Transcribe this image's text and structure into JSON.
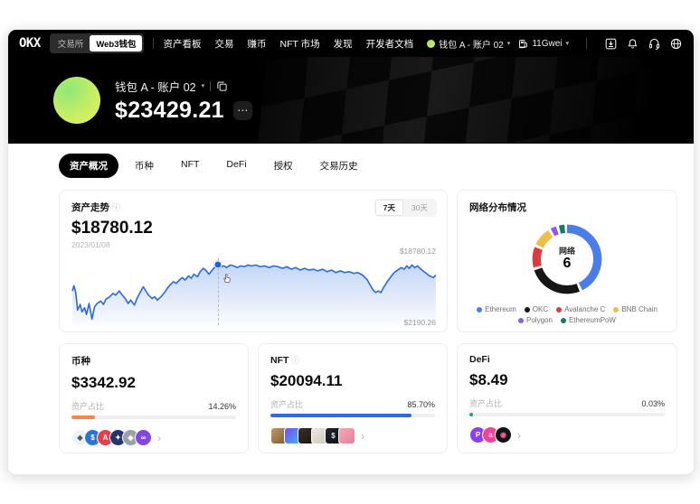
{
  "icons_text": {
    "caret_down": "▾",
    "chevron_right": "›",
    "more": "⋯",
    "info": "ⓘ"
  },
  "navbar": {
    "logo": "OKX",
    "toggle": [
      {
        "label": "交易所",
        "active": false
      },
      {
        "label": "Web3钱包",
        "active": true
      }
    ],
    "links": [
      "资产看板",
      "交易",
      "赚币",
      "NFT 市场",
      "发现",
      "开发者文档"
    ],
    "account_label": "钱包 A - 账户 02",
    "gas_label": "11Gwei"
  },
  "hero": {
    "wallet_name": "钱包 A - 账户 02",
    "balance": "$23429.21"
  },
  "tabs": [
    {
      "label": "资产概况",
      "active": true
    },
    {
      "label": "币种",
      "active": false
    },
    {
      "label": "NFT",
      "active": false
    },
    {
      "label": "DeFi",
      "active": false
    },
    {
      "label": "授权",
      "active": false
    },
    {
      "label": "交易历史",
      "active": false
    }
  ],
  "trend_card": {
    "title": "资产走势",
    "value": "$18780.12",
    "date": "2023/01/08",
    "ranges": [
      {
        "label": "7天",
        "active": true
      },
      {
        "label": "30天",
        "active": false
      }
    ],
    "max_label": "$18780.12",
    "min_label": "$2190.26",
    "line_color": "#2a6be2"
  },
  "network_card": {
    "title": "网络分布情况",
    "center_label": "网络",
    "center_value": "6"
  },
  "asset_cards": [
    {
      "title": "币种",
      "info_icon": false,
      "value": "$3342.92",
      "ratio_label": "资产占比",
      "percent": "14.26%",
      "bar_pct": 14.26,
      "bar_color": "#f2874a",
      "icon_shape": "circle",
      "icons": [
        {
          "name": "eth-token-icon",
          "glyph": "◆",
          "bg": "#eef0f3",
          "bg2": "#eef0f3",
          "fg": "#4d5a69"
        },
        {
          "name": "usdc-token-icon",
          "glyph": "$",
          "bg": "#2b76d2",
          "bg2": "#2b76d2",
          "fg": "#ffffff"
        },
        {
          "name": "avax-token-icon",
          "glyph": "A",
          "bg": "#e6404a",
          "bg2": "#e6404a",
          "fg": "#ffffff"
        },
        {
          "name": "navy-token-icon",
          "glyph": "✦",
          "bg": "#23356b",
          "bg2": "#23356b",
          "fg": "#ffffff"
        },
        {
          "name": "gray-token-icon",
          "glyph": "◈",
          "bg": "#9aa0a8",
          "bg2": "#9aa0a8",
          "fg": "#ffffff"
        },
        {
          "name": "polygon-token-icon",
          "glyph": "∞",
          "bg": "#8247e5",
          "bg2": "#8247e5",
          "fg": "#ffffff"
        }
      ]
    },
    {
      "title": "NFT",
      "info_icon": true,
      "value": "$20094.11",
      "ratio_label": "资产占比",
      "percent": "85.70%",
      "bar_pct": 85.7,
      "bar_color": "#2b6be4",
      "icon_shape": "square",
      "icons": [
        {
          "name": "nft-thumbnail",
          "glyph": "",
          "bg": "#c59a66",
          "bg2": "#7d5a33",
          "fg": "#3a2c18"
        },
        {
          "name": "nft-thumbnail",
          "glyph": "",
          "bg": "#7a4df0",
          "bg2": "#39b3f2",
          "fg": "#ffffff"
        },
        {
          "name": "nft-thumbnail",
          "glyph": "",
          "bg": "#3c3129",
          "bg2": "#191410",
          "fg": "#caa36a"
        },
        {
          "name": "nft-thumbnail",
          "glyph": "",
          "bg": "#ebe7e1",
          "bg2": "#cfc8bd",
          "fg": "#333333"
        },
        {
          "name": "nft-thumbnail",
          "glyph": "$",
          "bg": "#23232d",
          "bg2": "#101017",
          "fg": "#e8e8e8"
        },
        {
          "name": "nft-thumbnail",
          "glyph": "",
          "bg": "#f2a9ba",
          "bg2": "#e87f97",
          "fg": "#40303a"
        }
      ]
    },
    {
      "title": "DeFi",
      "info_icon": false,
      "value": "$8.49",
      "ratio_label": "资产占比",
      "percent": "0.03%",
      "bar_pct": 0.03,
      "bar_color": "#12a08e",
      "icon_shape": "circle",
      "icons": [
        {
          "name": "defi-protocol-icon",
          "glyph": "P",
          "bg": "#8b3ff0",
          "bg2": "#8b3ff0",
          "fg": "#ffffff"
        },
        {
          "name": "defi-protocol-icon",
          "glyph": "a",
          "bg": "#f0439a",
          "bg2": "#f0439a",
          "fg": "#ffffff"
        },
        {
          "name": "defi-protocol-icon",
          "glyph": "◉",
          "bg": "#141414",
          "bg2": "#141414",
          "fg": "#f05fa0"
        }
      ]
    }
  ],
  "chart_data": [
    {
      "type": "line",
      "title": "资产走势 (7天)",
      "start_date": "2023/01/08",
      "y_max": 18780.12,
      "y_min": 2190.26,
      "unit": "USD",
      "legend_position": "none",
      "grid": false,
      "cursor_point": [
        40.4,
        10
      ],
      "points_norm": [
        [
          1,
          48.8
        ],
        [
          1.4,
          41
        ],
        [
          1.9,
          51
        ],
        [
          2.4,
          77.5
        ],
        [
          3.1,
          69
        ],
        [
          3.6,
          80
        ],
        [
          4.3,
          74
        ],
        [
          4.8,
          84
        ],
        [
          5.5,
          67.5
        ],
        [
          6.3,
          91
        ],
        [
          7,
          72.5
        ],
        [
          7.7,
          67.5
        ],
        [
          8.7,
          64
        ],
        [
          9.4,
          69
        ],
        [
          10.1,
          61
        ],
        [
          11.1,
          57.5
        ],
        [
          12,
          52.5
        ],
        [
          12.7,
          55
        ],
        [
          13.7,
          48.8
        ],
        [
          14.4,
          54
        ],
        [
          15.4,
          61
        ],
        [
          16.1,
          67.5
        ],
        [
          16.8,
          62.5
        ],
        [
          17.8,
          70
        ],
        [
          18.5,
          60
        ],
        [
          19.2,
          52.5
        ],
        [
          20.2,
          42.5
        ],
        [
          20.9,
          48.8
        ],
        [
          21.6,
          55
        ],
        [
          22.6,
          60
        ],
        [
          23.3,
          57.5
        ],
        [
          24,
          62.5
        ],
        [
          25,
          57.5
        ],
        [
          26,
          51
        ],
        [
          26.7,
          45
        ],
        [
          27.6,
          38.8
        ],
        [
          28.4,
          35
        ],
        [
          29.1,
          37.5
        ],
        [
          30,
          32.5
        ],
        [
          30.8,
          28.8
        ],
        [
          31.5,
          32.5
        ],
        [
          32.5,
          26.3
        ],
        [
          33.2,
          30
        ],
        [
          33.9,
          23.8
        ],
        [
          34.9,
          27.5
        ],
        [
          35.6,
          20
        ],
        [
          36.5,
          15
        ],
        [
          37.3,
          18.8
        ],
        [
          38,
          23.8
        ],
        [
          38.9,
          17.5
        ],
        [
          39.7,
          12.5
        ],
        [
          40.4,
          10
        ],
        [
          41.1,
          12.5
        ],
        [
          42.1,
          11.3
        ],
        [
          42.8,
          13.8
        ],
        [
          43.8,
          10
        ],
        [
          44.7,
          11.3
        ],
        [
          45.7,
          13.8
        ],
        [
          46.6,
          11.3
        ],
        [
          47.6,
          12.5
        ],
        [
          48.6,
          10
        ],
        [
          49.5,
          11.3
        ],
        [
          50.7,
          10
        ],
        [
          51.9,
          12.5
        ],
        [
          53.1,
          11.3
        ],
        [
          54.3,
          13.8
        ],
        [
          55.5,
          11.3
        ],
        [
          56.7,
          12.5
        ],
        [
          57.9,
          15
        ],
        [
          59.1,
          12.5
        ],
        [
          60.3,
          16.3
        ],
        [
          61.5,
          13.8
        ],
        [
          62.7,
          17.5
        ],
        [
          63.9,
          15
        ],
        [
          65.1,
          17.5
        ],
        [
          66.3,
          16.3
        ],
        [
          67.5,
          18.8
        ],
        [
          68.8,
          16.3
        ],
        [
          70,
          20
        ],
        [
          71.2,
          17.5
        ],
        [
          72.4,
          21.3
        ],
        [
          73.6,
          18.8
        ],
        [
          74.8,
          21.3
        ],
        [
          76,
          20
        ],
        [
          77.2,
          22.5
        ],
        [
          78.4,
          21.3
        ],
        [
          79.6,
          25
        ],
        [
          80.8,
          31.3
        ],
        [
          81.7,
          40
        ],
        [
          82.5,
          47.5
        ],
        [
          83.2,
          51.3
        ],
        [
          83.9,
          48.8
        ],
        [
          84.6,
          51.3
        ],
        [
          85.3,
          43.8
        ],
        [
          86.3,
          35
        ],
        [
          87.3,
          27.5
        ],
        [
          88.2,
          21.3
        ],
        [
          89.2,
          17.5
        ],
        [
          90.1,
          13.8
        ],
        [
          90.9,
          16.3
        ],
        [
          91.6,
          11.3
        ],
        [
          92.3,
          15
        ],
        [
          93,
          10
        ],
        [
          93.8,
          13.8
        ],
        [
          94.5,
          11.3
        ],
        [
          95.2,
          15
        ],
        [
          96,
          18.8
        ],
        [
          96.9,
          22.5
        ],
        [
          97.8,
          26.3
        ],
        [
          98.8,
          28.8
        ],
        [
          99.5,
          25
        ]
      ]
    },
    {
      "type": "pie",
      "title": "网络分布情况",
      "center_label": "网络",
      "center_value": 6,
      "legend_position": "bottom",
      "segments": [
        {
          "name": "Ethereum",
          "pct": 44,
          "color": "#4a7de8"
        },
        {
          "name": "OKC",
          "pct": 27,
          "color": "#161616"
        },
        {
          "name": "Avalanche C",
          "pct": 11,
          "color": "#df3a3e"
        },
        {
          "name": "BNB Chain",
          "pct": 10,
          "color": "#efbf4c"
        },
        {
          "name": "Polygon",
          "pct": 4,
          "color": "#8a5cf5"
        },
        {
          "name": "EthereumPoW",
          "pct": 4,
          "color": "#0e7c70"
        }
      ]
    }
  ]
}
